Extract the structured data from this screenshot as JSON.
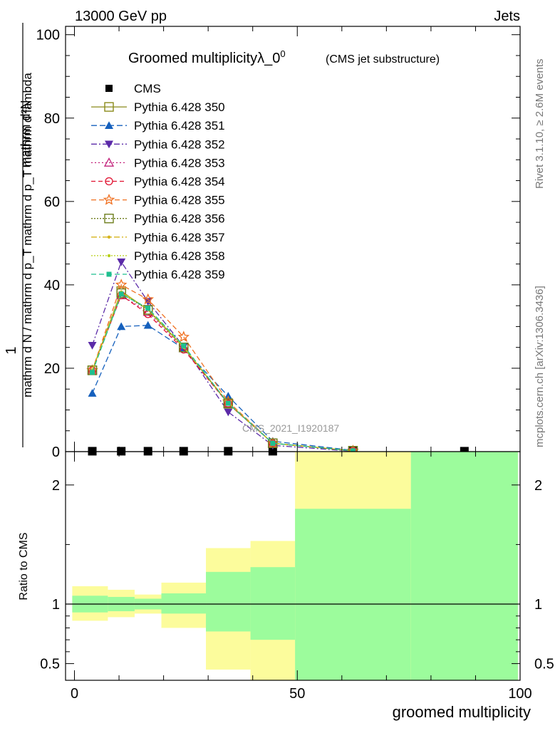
{
  "header": {
    "left": "13000 GeV pp",
    "right": "Jets",
    "side_top": "Rivet 3.1.10, ≥ 2.6M events",
    "side_bottom": "mcplots.cern.ch [arXiv:1306.3436]",
    "watermark": "CMS_2021_I1920187"
  },
  "chart_data": [
    {
      "type": "line",
      "title": "Groomed multiplicityλ_0",
      "title_superscript": "0",
      "subtitle": "(CMS jet substructure)",
      "ylabel_numerator": "mathrm d²N",
      "ylabel_numerator_prefix": "1",
      "ylabel_denominator": "mathrm d N / mathrm d p_T mathrm d p_T mathrm d lambda",
      "ylim": [
        0,
        102
      ],
      "yticks": [
        0,
        20,
        40,
        60,
        80,
        100
      ],
      "xlim": [
        -2,
        100
      ],
      "legend_position": "upper-left",
      "x": [
        4,
        10.5,
        16.5,
        24.5,
        34.5,
        44.5,
        62.5,
        87.5
      ],
      "series": [
        {
          "name": "CMS",
          "color": "#000000",
          "marker": "square-filled",
          "dash": "none",
          "values": [
            0.1,
            0.1,
            0.1,
            0.1,
            0.1,
            0.1,
            0.1,
            0.1
          ],
          "with_line": false
        },
        {
          "name": "Pythia 6.428 350",
          "color": "#8a8a1a",
          "marker": "square-open",
          "dash": "solid",
          "values": [
            19.5,
            38.5,
            34,
            25,
            11.5,
            2,
            0.2,
            null
          ]
        },
        {
          "name": "Pythia 6.428 351",
          "color": "#1560bd",
          "marker": "triangle-up-filled",
          "dash": "8,4",
          "values": [
            14,
            30,
            30.3,
            24.7,
            13.3,
            2.5,
            0.3,
            null
          ]
        },
        {
          "name": "Pythia 6.428 352",
          "color": "#5b2aa8",
          "marker": "triangle-down-filled",
          "dash": "8,3,2,3",
          "values": [
            25.5,
            45.5,
            36,
            25.2,
            9.5,
            1.5,
            0.1,
            null
          ]
        },
        {
          "name": "Pythia 6.428 353",
          "color": "#c2217b",
          "marker": "triangle-up-open",
          "dash": "2,3",
          "values": [
            19.5,
            37.5,
            33.5,
            24.8,
            11.6,
            2,
            0.2,
            null
          ]
        },
        {
          "name": "Pythia 6.428 354",
          "color": "#e0102f",
          "marker": "circle-open",
          "dash": "6,4",
          "values": [
            19.5,
            37.5,
            33,
            24.5,
            11.5,
            2,
            0.2,
            null
          ]
        },
        {
          "name": "Pythia 6.428 355",
          "color": "#f07020",
          "marker": "star-open",
          "dash": "7,4",
          "values": [
            19.5,
            40,
            36.5,
            27.5,
            12,
            2,
            0.2,
            null
          ]
        },
        {
          "name": "Pythia 6.428 356",
          "color": "#6f7f1f",
          "marker": "square-open",
          "dash": "2,2",
          "values": [
            19.5,
            38,
            34,
            25,
            11.6,
            2,
            0.2,
            null
          ]
        },
        {
          "name": "Pythia 6.428 357",
          "color": "#d6b41c",
          "marker": "dot",
          "dash": "8,3,2,3",
          "values": [
            19.5,
            38.3,
            34.2,
            25.1,
            11.7,
            2,
            0.2,
            null
          ]
        },
        {
          "name": "Pythia 6.428 358",
          "color": "#b8d01a",
          "marker": "dot",
          "dash": "2,2",
          "values": [
            19.5,
            38.2,
            34.1,
            25,
            11.6,
            2,
            0.2,
            null
          ]
        },
        {
          "name": "Pythia 6.428 359",
          "color": "#1fbf8f",
          "marker": "square-small",
          "dash": "7,4",
          "values": [
            19,
            37.8,
            34.4,
            25.4,
            11.6,
            2,
            0.2,
            null
          ]
        }
      ]
    },
    {
      "type": "area",
      "ylabel": "Ratio to CMS",
      "xlabel": "groomed multiplicity",
      "xlim": [
        -2,
        100
      ],
      "ylim": [
        0.36,
        2.28
      ],
      "xticks": [
        0,
        50,
        100
      ],
      "yticks": [
        0.5,
        1,
        2
      ],
      "reference_line": 1,
      "bins": [
        {
          "x0": -0.5,
          "x1": 7.5,
          "inner": [
            0.93,
            1.07
          ],
          "outer": [
            0.86,
            1.15
          ]
        },
        {
          "x0": 7.5,
          "x1": 13.5,
          "inner": [
            0.94,
            1.06
          ],
          "outer": [
            0.89,
            1.12
          ]
        },
        {
          "x0": 13.5,
          "x1": 19.5,
          "inner": [
            0.955,
            1.045
          ],
          "outer": [
            0.92,
            1.08
          ]
        },
        {
          "x0": 19.5,
          "x1": 29.5,
          "inner": [
            0.92,
            1.09
          ],
          "outer": [
            0.8,
            1.18
          ]
        },
        {
          "x0": 29.5,
          "x1": 39.5,
          "inner": [
            0.77,
            1.27
          ],
          "outer": [
            0.45,
            1.47
          ]
        },
        {
          "x0": 39.5,
          "x1": 49.5,
          "inner": [
            0.7,
            1.31
          ],
          "outer": [
            0.36,
            1.53
          ]
        },
        {
          "x0": 49.5,
          "x1": 75.5,
          "inner": [
            0.36,
            1.8
          ],
          "outer": [
            0.36,
            2.28
          ]
        },
        {
          "x0": 75.5,
          "x1": 99.5,
          "inner": [
            0.36,
            2.28
          ],
          "outer": [
            0.36,
            2.28
          ]
        }
      ],
      "colors": {
        "inner": "#9cfc9c",
        "outer": "#fcfc9c"
      }
    }
  ]
}
